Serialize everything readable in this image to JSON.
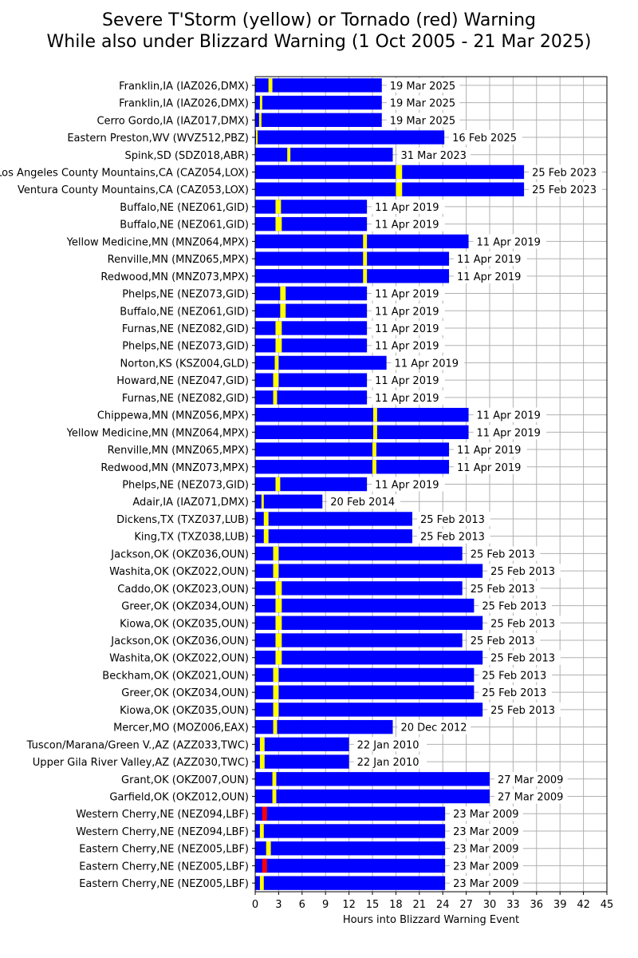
{
  "chart_data": {
    "type": "bar",
    "title_line1": "Severe T'Storm (yellow) or Tornado (red) Warning",
    "title_line2": "While also under Blizzard Warning (1 Oct 2005 - 21 Mar 2025)",
    "xlabel": "Hours into Blizzard Warning Event",
    "ylabel": "",
    "xlim": [
      0,
      45
    ],
    "xticks": [
      0,
      3,
      6,
      9,
      12,
      15,
      18,
      21,
      24,
      27,
      30,
      33,
      36,
      39,
      42,
      45
    ],
    "grid": true,
    "colors": {
      "bar": "#0000ff",
      "severe": "#ffff00",
      "tornado": "#ff0000"
    },
    "rows": [
      {
        "label": "Franklin,IA (IAZ026,DMX)",
        "duration": 16.2,
        "warn_start": 1.7,
        "warn_end": 2.2,
        "warn_type": "severe",
        "date": "19 Mar 2025"
      },
      {
        "label": "Franklin,IA (IAZ026,DMX)",
        "duration": 16.2,
        "warn_start": 0.6,
        "warn_end": 0.9,
        "warn_type": "severe",
        "date": "19 Mar 2025"
      },
      {
        "label": "Cerro Gordo,IA (IAZ017,DMX)",
        "duration": 16.2,
        "warn_start": 0.5,
        "warn_end": 0.8,
        "warn_type": "severe",
        "date": "19 Mar 2025"
      },
      {
        "label": "Eastern Preston,WV (WVZ512,PBZ)",
        "duration": 24.2,
        "warn_start": 0.1,
        "warn_end": 0.3,
        "warn_type": "severe",
        "date": "16 Feb 2025"
      },
      {
        "label": "Spink,SD (SDZ018,ABR)",
        "duration": 17.6,
        "warn_start": 4.1,
        "warn_end": 4.5,
        "warn_type": "severe",
        "date": "31 Mar 2023"
      },
      {
        "label": "Los Angeles County Mountains,CA (CAZ054,LOX)",
        "duration": 34.4,
        "warn_start": 18.0,
        "warn_end": 18.8,
        "warn_type": "severe",
        "date": "25 Feb 2023"
      },
      {
        "label": "Ventura County Mountains,CA (CAZ053,LOX)",
        "duration": 34.4,
        "warn_start": 18.0,
        "warn_end": 18.8,
        "warn_type": "severe",
        "date": "25 Feb 2023"
      },
      {
        "label": "Buffalo,NE (NEZ061,GID)",
        "duration": 14.3,
        "warn_start": 2.6,
        "warn_end": 3.3,
        "warn_type": "severe",
        "date": "11 Apr 2019"
      },
      {
        "label": "Buffalo,NE (NEZ061,GID)",
        "duration": 14.3,
        "warn_start": 2.6,
        "warn_end": 3.4,
        "warn_type": "severe",
        "date": "11 Apr 2019"
      },
      {
        "label": "Yellow Medicine,MN (MNZ064,MPX)",
        "duration": 27.3,
        "warn_start": 13.8,
        "warn_end": 14.3,
        "warn_type": "severe",
        "date": "11 Apr 2019"
      },
      {
        "label": "Renville,MN (MNZ065,MPX)",
        "duration": 24.8,
        "warn_start": 13.8,
        "warn_end": 14.3,
        "warn_type": "severe",
        "date": "11 Apr 2019"
      },
      {
        "label": "Redwood,MN (MNZ073,MPX)",
        "duration": 24.8,
        "warn_start": 13.8,
        "warn_end": 14.3,
        "warn_type": "severe",
        "date": "11 Apr 2019"
      },
      {
        "label": "Phelps,NE (NEZ073,GID)",
        "duration": 14.3,
        "warn_start": 3.2,
        "warn_end": 3.9,
        "warn_type": "severe",
        "date": "11 Apr 2019"
      },
      {
        "label": "Buffalo,NE (NEZ061,GID)",
        "duration": 14.3,
        "warn_start": 3.2,
        "warn_end": 3.9,
        "warn_type": "severe",
        "date": "11 Apr 2019"
      },
      {
        "label": "Furnas,NE (NEZ082,GID)",
        "duration": 14.3,
        "warn_start": 2.6,
        "warn_end": 3.4,
        "warn_type": "severe",
        "date": "11 Apr 2019"
      },
      {
        "label": "Phelps,NE (NEZ073,GID)",
        "duration": 14.3,
        "warn_start": 2.6,
        "warn_end": 3.4,
        "warn_type": "severe",
        "date": "11 Apr 2019"
      },
      {
        "label": "Norton,KS (KSZ004,GLD)",
        "duration": 16.8,
        "warn_start": 2.5,
        "warn_end": 3.0,
        "warn_type": "severe",
        "date": "11 Apr 2019"
      },
      {
        "label": "Howard,NE (NEZ047,GID)",
        "duration": 14.3,
        "warn_start": 2.3,
        "warn_end": 3.0,
        "warn_type": "severe",
        "date": "11 Apr 2019"
      },
      {
        "label": "Furnas,NE (NEZ082,GID)",
        "duration": 14.3,
        "warn_start": 2.3,
        "warn_end": 2.8,
        "warn_type": "severe",
        "date": "11 Apr 2019"
      },
      {
        "label": "Chippewa,MN (MNZ056,MPX)",
        "duration": 27.3,
        "warn_start": 15.1,
        "warn_end": 15.6,
        "warn_type": "severe",
        "date": "11 Apr 2019"
      },
      {
        "label": "Yellow Medicine,MN (MNZ064,MPX)",
        "duration": 27.3,
        "warn_start": 15.1,
        "warn_end": 15.6,
        "warn_type": "severe",
        "date": "11 Apr 2019"
      },
      {
        "label": "Renville,MN (MNZ065,MPX)",
        "duration": 24.8,
        "warn_start": 15.0,
        "warn_end": 15.5,
        "warn_type": "severe",
        "date": "11 Apr 2019"
      },
      {
        "label": "Redwood,MN (MNZ073,MPX)",
        "duration": 24.8,
        "warn_start": 15.0,
        "warn_end": 15.5,
        "warn_type": "severe",
        "date": "11 Apr 2019"
      },
      {
        "label": "Phelps,NE (NEZ073,GID)",
        "duration": 14.3,
        "warn_start": 2.6,
        "warn_end": 3.2,
        "warn_type": "severe",
        "date": "11 Apr 2019"
      },
      {
        "label": "Adair,IA (IAZ071,DMX)",
        "duration": 8.6,
        "warn_start": 0.8,
        "warn_end": 1.1,
        "warn_type": "severe",
        "date": "20 Feb 2014"
      },
      {
        "label": "Dickens,TX (TXZ037,LUB)",
        "duration": 20.1,
        "warn_start": 1.1,
        "warn_end": 1.7,
        "warn_type": "severe",
        "date": "25 Feb 2013"
      },
      {
        "label": "King,TX (TXZ038,LUB)",
        "duration": 20.1,
        "warn_start": 1.1,
        "warn_end": 1.7,
        "warn_type": "severe",
        "date": "25 Feb 2013"
      },
      {
        "label": "Jackson,OK (OKZ036,OUN)",
        "duration": 26.5,
        "warn_start": 2.3,
        "warn_end": 3.0,
        "warn_type": "severe",
        "date": "25 Feb 2013"
      },
      {
        "label": "Washita,OK (OKZ022,OUN)",
        "duration": 29.1,
        "warn_start": 2.3,
        "warn_end": 3.0,
        "warn_type": "severe",
        "date": "25 Feb 2013"
      },
      {
        "label": "Caddo,OK (OKZ023,OUN)",
        "duration": 26.5,
        "warn_start": 2.6,
        "warn_end": 3.4,
        "warn_type": "severe",
        "date": "25 Feb 2013"
      },
      {
        "label": "Greer,OK (OKZ034,OUN)",
        "duration": 28.0,
        "warn_start": 2.6,
        "warn_end": 3.4,
        "warn_type": "severe",
        "date": "25 Feb 2013"
      },
      {
        "label": "Kiowa,OK (OKZ035,OUN)",
        "duration": 29.1,
        "warn_start": 2.6,
        "warn_end": 3.4,
        "warn_type": "severe",
        "date": "25 Feb 2013"
      },
      {
        "label": "Jackson,OK (OKZ036,OUN)",
        "duration": 26.5,
        "warn_start": 2.6,
        "warn_end": 3.4,
        "warn_type": "severe",
        "date": "25 Feb 2013"
      },
      {
        "label": "Washita,OK (OKZ022,OUN)",
        "duration": 29.1,
        "warn_start": 2.6,
        "warn_end": 3.4,
        "warn_type": "severe",
        "date": "25 Feb 2013"
      },
      {
        "label": "Beckham,OK (OKZ021,OUN)",
        "duration": 28.0,
        "warn_start": 2.3,
        "warn_end": 3.0,
        "warn_type": "severe",
        "date": "25 Feb 2013"
      },
      {
        "label": "Greer,OK (OKZ034,OUN)",
        "duration": 28.0,
        "warn_start": 2.3,
        "warn_end": 3.0,
        "warn_type": "severe",
        "date": "25 Feb 2013"
      },
      {
        "label": "Kiowa,OK (OKZ035,OUN)",
        "duration": 29.1,
        "warn_start": 2.3,
        "warn_end": 3.0,
        "warn_type": "severe",
        "date": "25 Feb 2013"
      },
      {
        "label": "Mercer,MO (MOZ006,EAX)",
        "duration": 17.6,
        "warn_start": 2.3,
        "warn_end": 2.8,
        "warn_type": "severe",
        "date": "20 Dec 2012"
      },
      {
        "label": "Tuscon/Marana/Green V.,AZ (AZZ033,TWC)",
        "duration": 12.0,
        "warn_start": 0.6,
        "warn_end": 1.2,
        "warn_type": "severe",
        "date": "22 Jan 2010"
      },
      {
        "label": "Upper Gila River Valley,AZ (AZZ030,TWC)",
        "duration": 12.0,
        "warn_start": 0.6,
        "warn_end": 1.2,
        "warn_type": "severe",
        "date": "22 Jan 2010"
      },
      {
        "label": "Grant,OK (OKZ007,OUN)",
        "duration": 30.0,
        "warn_start": 2.2,
        "warn_end": 2.7,
        "warn_type": "severe",
        "date": "27 Mar 2009"
      },
      {
        "label": "Garfield,OK (OKZ012,OUN)",
        "duration": 30.0,
        "warn_start": 2.2,
        "warn_end": 2.7,
        "warn_type": "severe",
        "date": "27 Mar 2009"
      },
      {
        "label": "Western Cherry,NE (NEZ094,LBF)",
        "duration": 24.3,
        "warn_start": 0.9,
        "warn_end": 1.5,
        "warn_type": "tornado",
        "date": "23 Mar 2009"
      },
      {
        "label": "Western Cherry,NE (NEZ094,LBF)",
        "duration": 24.3,
        "warn_start": 0.6,
        "warn_end": 1.1,
        "warn_type": "severe",
        "date": "23 Mar 2009"
      },
      {
        "label": "Eastern Cherry,NE (NEZ005,LBF)",
        "duration": 24.3,
        "warn_start": 1.4,
        "warn_end": 2.0,
        "warn_type": "severe",
        "date": "23 Mar 2009"
      },
      {
        "label": "Eastern Cherry,NE (NEZ005,LBF)",
        "duration": 24.3,
        "warn_start": 0.9,
        "warn_end": 1.5,
        "warn_type": "tornado",
        "date": "23 Mar 2009"
      },
      {
        "label": "Eastern Cherry,NE (NEZ005,LBF)",
        "duration": 24.3,
        "warn_start": 0.6,
        "warn_end": 1.1,
        "warn_type": "severe",
        "date": "23 Mar 2009"
      }
    ]
  }
}
